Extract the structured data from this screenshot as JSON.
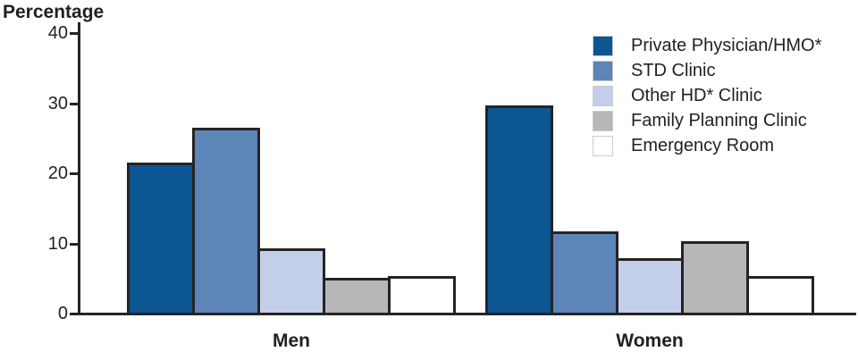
{
  "page": {
    "background": "#ffffff",
    "text_color": "#231f20"
  },
  "chart_data": {
    "type": "bar",
    "title": "",
    "ylabel": "Percentage",
    "xlabel": "",
    "ylim": [
      0,
      40
    ],
    "yticks": [
      0,
      10,
      20,
      30,
      40
    ],
    "grid": false,
    "legend_position": "top-right",
    "categories": [
      "Men",
      "Women"
    ],
    "series": [
      {
        "name": "Private Physician/HMO*",
        "color": "#0b5693",
        "values": [
          21.5,
          29.7
        ]
      },
      {
        "name": "STD Clinic",
        "color": "#5d85b7",
        "values": [
          26.5,
          11.7
        ]
      },
      {
        "name": "Other HD* Clinic",
        "color": "#c3cfe8",
        "values": [
          9.3,
          7.9
        ]
      },
      {
        "name": "Family Planning Clinic",
        "color": "#b6b7b9",
        "values": [
          5.1,
          10.3
        ]
      },
      {
        "name": "Emergency Room",
        "color": "#ffffff",
        "values": [
          5.4,
          5.4
        ]
      }
    ],
    "bar_border_color": "#262324",
    "axis_color": "#262324"
  }
}
